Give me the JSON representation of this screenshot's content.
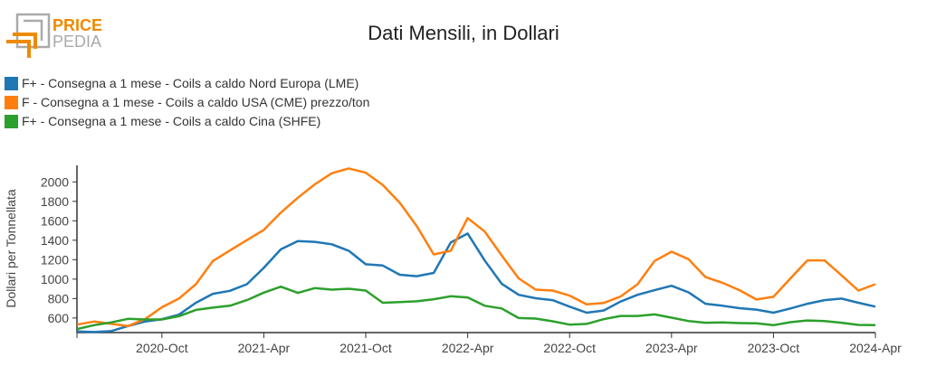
{
  "logo": {
    "line1": "PRICE",
    "line2": "PEDIA",
    "color_orange": "#ee8a00",
    "color_gray": "#aaaaaa"
  },
  "chart_data": {
    "type": "line",
    "title": "Dati Mensili, in Dollari",
    "ylabel": "Dollari per Tonnellata",
    "xlabel": "",
    "ylim": [
      450,
      2170
    ],
    "yticks": [
      600,
      800,
      1000,
      1200,
      1400,
      1600,
      1800,
      2000
    ],
    "xticks": [
      "2020-Oct",
      "2021-Apr",
      "2021-Oct",
      "2022-Apr",
      "2022-Oct",
      "2023-Apr",
      "2023-Oct",
      "2024-Apr"
    ],
    "grid": false,
    "legend_position": "top-left",
    "x": [
      "2020-05",
      "2020-06",
      "2020-07",
      "2020-08",
      "2020-09",
      "2020-10",
      "2020-11",
      "2020-12",
      "2021-01",
      "2021-02",
      "2021-03",
      "2021-04",
      "2021-05",
      "2021-06",
      "2021-07",
      "2021-08",
      "2021-09",
      "2021-10",
      "2021-11",
      "2021-12",
      "2022-01",
      "2022-02",
      "2022-03",
      "2022-04",
      "2022-05",
      "2022-06",
      "2022-07",
      "2022-08",
      "2022-09",
      "2022-10",
      "2022-11",
      "2022-12",
      "2023-01",
      "2023-02",
      "2023-03",
      "2023-04",
      "2023-05",
      "2023-06",
      "2023-07",
      "2023-08",
      "2023-09",
      "2023-10",
      "2023-11",
      "2023-12",
      "2024-01",
      "2024-02",
      "2024-03",
      "2024-04"
    ],
    "series": [
      {
        "name": "F+ - Consegna a 1 mese - Coils a caldo Nord Europa (LME)",
        "color": "#1f77b4",
        "values": [
          462,
          456,
          465,
          517,
          563,
          588,
          634,
          757,
          849,
          880,
          947,
          1116,
          1306,
          1392,
          1383,
          1358,
          1291,
          1153,
          1140,
          1045,
          1030,
          1064,
          1377,
          1469,
          1192,
          953,
          839,
          803,
          784,
          717,
          655,
          677,
          769,
          839,
          886,
          932,
          864,
          747,
          726,
          701,
          686,
          655,
          698,
          747,
          784,
          800,
          757,
          717
        ]
      },
      {
        "name": "F - Consegna a 1 mese - Coils a caldo USA (CME) prezzo/ton",
        "color": "#ff7f0e",
        "values": [
          532,
          563,
          540,
          517,
          588,
          710,
          800,
          947,
          1186,
          1294,
          1401,
          1506,
          1684,
          1837,
          1975,
          2089,
          2138,
          2095,
          1969,
          1785,
          1546,
          1254,
          1291,
          1628,
          1490,
          1245,
          1008,
          892,
          882,
          830,
          741,
          754,
          821,
          947,
          1186,
          1282,
          1205,
          1021,
          962,
          886,
          790,
          818,
          1008,
          1193,
          1193,
          1039,
          882,
          947
        ]
      },
      {
        "name": "F+ - Consegna a 1 mese - Coils a caldo Cina (SHFE)",
        "color": "#2ca02c",
        "values": [
          486,
          526,
          554,
          591,
          585,
          585,
          618,
          683,
          707,
          726,
          784,
          861,
          922,
          858,
          907,
          892,
          901,
          882,
          757,
          763,
          772,
          793,
          824,
          812,
          726,
          698,
          600,
          594,
          566,
          532,
          539,
          588,
          621,
          621,
          637,
          603,
          569,
          551,
          554,
          548,
          545,
          526,
          557,
          575,
          569,
          551,
          529,
          526
        ]
      }
    ]
  }
}
